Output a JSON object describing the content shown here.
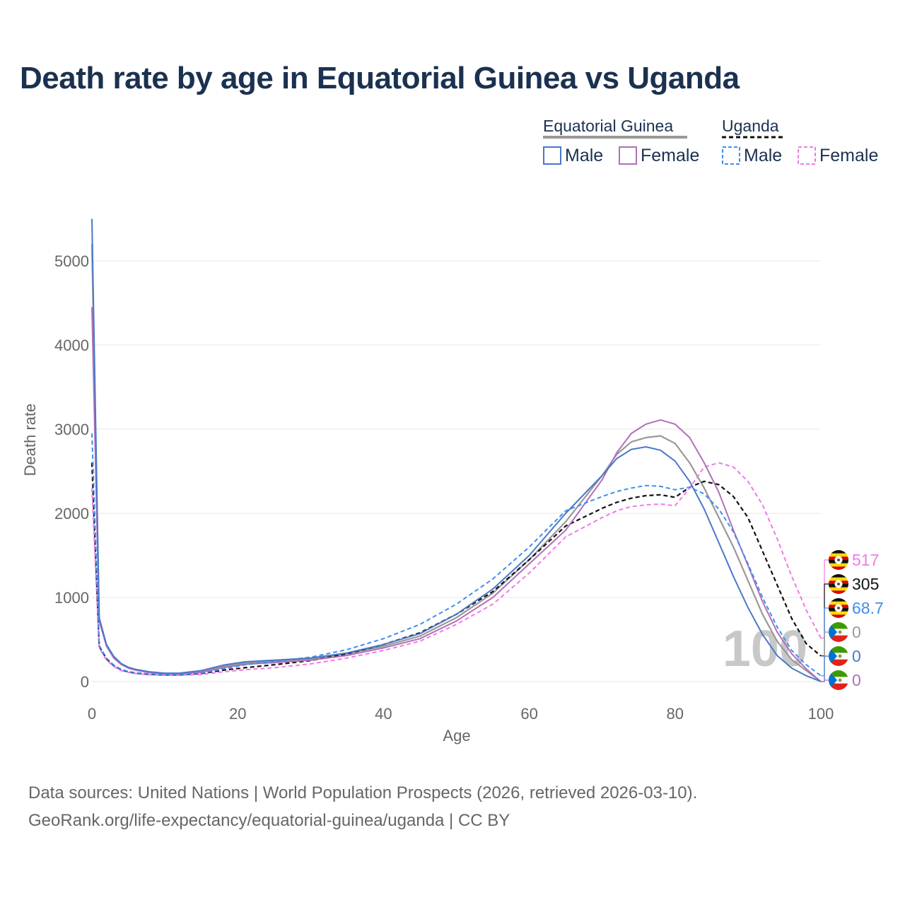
{
  "title": "Death rate by age in Equatorial Guinea vs Uganda",
  "footer": {
    "line1": "Data sources: United Nations | World Population Prospects (2026, retrieved 2026-03-10).",
    "line2": "GeoRank.org/life-expectancy/equatorial-guinea/uganda | CC BY"
  },
  "legend": {
    "group1": "Equatorial Guinea",
    "group2": "Uganda",
    "male": "Male",
    "female": "Female"
  },
  "big_year": "100",
  "colors": {
    "eg_total": "#999999",
    "eg_male": "#4a78c8",
    "eg_female": "#b070b8",
    "ug_total": "#111111",
    "ug_male": "#3d8ef0",
    "ug_female": "#f07ae8"
  },
  "end_labels": [
    {
      "value": "517",
      "color": "#f07ae8",
      "flag": "uganda"
    },
    {
      "value": "305",
      "color": "#111111",
      "flag": "uganda"
    },
    {
      "value": "68.7",
      "color": "#3d8ef0",
      "flag": "uganda"
    },
    {
      "value": "0",
      "color": "#999999",
      "flag": "equatorial-guinea"
    },
    {
      "value": "0",
      "color": "#4a78c8",
      "flag": "equatorial-guinea"
    },
    {
      "value": "0",
      "color": "#b070b8",
      "flag": "equatorial-guinea"
    }
  ],
  "chart_data": {
    "type": "line",
    "title": "Death rate by age in Equatorial Guinea vs Uganda",
    "xlabel": "Age",
    "ylabel": "Death rate",
    "xlim": [
      0,
      100
    ],
    "ylim": [
      0,
      5500
    ],
    "xticks": [
      0,
      20,
      40,
      60,
      80,
      100
    ],
    "yticks": [
      0,
      1000,
      2000,
      3000,
      4000,
      5000
    ],
    "grid": true,
    "series": [
      {
        "name": "Equatorial Guinea (total)",
        "key": "eg_total",
        "dash": false,
        "x": [
          0,
          1,
          2,
          3,
          4,
          5,
          6,
          8,
          10,
          12,
          15,
          18,
          21,
          25,
          30,
          35,
          40,
          45,
          50,
          55,
          60,
          65,
          70,
          72,
          74,
          76,
          78,
          80,
          82,
          84,
          86,
          88,
          90,
          92,
          94,
          96,
          98,
          100
        ],
        "y": [
          5200,
          740,
          430,
          290,
          210,
          165,
          140,
          110,
          95,
          95,
          120,
          180,
          220,
          240,
          270,
          330,
          420,
          540,
          760,
          1050,
          1450,
          1900,
          2450,
          2700,
          2850,
          2900,
          2920,
          2830,
          2600,
          2300,
          1950,
          1600,
          1200,
          800,
          480,
          260,
          130,
          0
        ]
      },
      {
        "name": "Equatorial Guinea Male",
        "key": "eg_male",
        "dash": false,
        "x": [
          0,
          1,
          2,
          3,
          4,
          5,
          6,
          8,
          10,
          12,
          15,
          18,
          21,
          25,
          30,
          35,
          40,
          45,
          50,
          55,
          60,
          65,
          70,
          72,
          74,
          76,
          78,
          80,
          82,
          84,
          86,
          88,
          90,
          92,
          94,
          96,
          98,
          100
        ],
        "y": [
          5500,
          760,
          440,
          300,
          215,
          170,
          145,
          115,
          100,
          100,
          130,
          195,
          235,
          255,
          280,
          340,
          440,
          570,
          800,
          1100,
          1500,
          2000,
          2450,
          2650,
          2760,
          2790,
          2750,
          2620,
          2380,
          2050,
          1650,
          1250,
          880,
          560,
          310,
          160,
          70,
          0
        ]
      },
      {
        "name": "Equatorial Guinea Female",
        "key": "eg_female",
        "dash": false,
        "x": [
          0,
          1,
          2,
          3,
          4,
          5,
          6,
          8,
          10,
          12,
          15,
          18,
          21,
          25,
          30,
          35,
          40,
          45,
          50,
          55,
          60,
          65,
          70,
          72,
          74,
          76,
          78,
          80,
          82,
          84,
          86,
          88,
          90,
          92,
          94,
          96,
          98,
          100
        ],
        "y": [
          4450,
          720,
          420,
          280,
          205,
          160,
          135,
          105,
          90,
          90,
          110,
          165,
          205,
          225,
          255,
          310,
          400,
          510,
          720,
          1000,
          1400,
          1800,
          2400,
          2720,
          2950,
          3060,
          3110,
          3060,
          2900,
          2600,
          2250,
          1800,
          1380,
          950,
          590,
          330,
          150,
          0
        ]
      },
      {
        "name": "Uganda (total)",
        "key": "ug_total",
        "dash": true,
        "x": [
          0,
          1,
          2,
          3,
          4,
          5,
          6,
          8,
          10,
          12,
          15,
          18,
          21,
          25,
          30,
          35,
          40,
          45,
          50,
          55,
          60,
          65,
          70,
          72,
          74,
          76,
          78,
          80,
          82,
          84,
          86,
          88,
          90,
          92,
          94,
          96,
          98,
          100
        ],
        "y": [
          2600,
          420,
          270,
          190,
          140,
          115,
          100,
          85,
          80,
          80,
          95,
          135,
          165,
          200,
          250,
          330,
          440,
          580,
          800,
          1070,
          1450,
          1850,
          2060,
          2130,
          2180,
          2210,
          2220,
          2190,
          2310,
          2380,
          2340,
          2200,
          1950,
          1550,
          1150,
          750,
          450,
          305
        ]
      },
      {
        "name": "Uganda Male",
        "key": "ug_male",
        "dash": true,
        "x": [
          0,
          1,
          2,
          3,
          4,
          5,
          6,
          8,
          10,
          12,
          15,
          18,
          21,
          25,
          30,
          35,
          40,
          45,
          50,
          55,
          60,
          65,
          70,
          72,
          74,
          76,
          78,
          80,
          82,
          84,
          86,
          88,
          90,
          92,
          94,
          96,
          98,
          100
        ],
        "y": [
          2950,
          430,
          280,
          195,
          145,
          120,
          105,
          90,
          85,
          85,
          100,
          150,
          200,
          240,
          290,
          380,
          510,
          680,
          920,
          1220,
          1600,
          2030,
          2200,
          2260,
          2300,
          2330,
          2320,
          2280,
          2310,
          2230,
          2050,
          1780,
          1400,
          1000,
          650,
          370,
          200,
          68.7
        ]
      },
      {
        "name": "Uganda Female",
        "key": "ug_female",
        "dash": true,
        "x": [
          0,
          1,
          2,
          3,
          4,
          5,
          6,
          8,
          10,
          12,
          15,
          18,
          21,
          25,
          30,
          35,
          40,
          45,
          50,
          55,
          60,
          65,
          70,
          72,
          74,
          76,
          78,
          80,
          82,
          84,
          86,
          88,
          90,
          92,
          94,
          96,
          98,
          100
        ],
        "y": [
          2300,
          400,
          255,
          180,
          130,
          110,
          95,
          80,
          75,
          75,
          85,
          115,
          140,
          165,
          210,
          280,
          370,
          480,
          680,
          920,
          1290,
          1720,
          1950,
          2030,
          2080,
          2100,
          2110,
          2090,
          2300,
          2550,
          2600,
          2550,
          2380,
          2100,
          1700,
          1250,
          850,
          517
        ]
      }
    ]
  }
}
